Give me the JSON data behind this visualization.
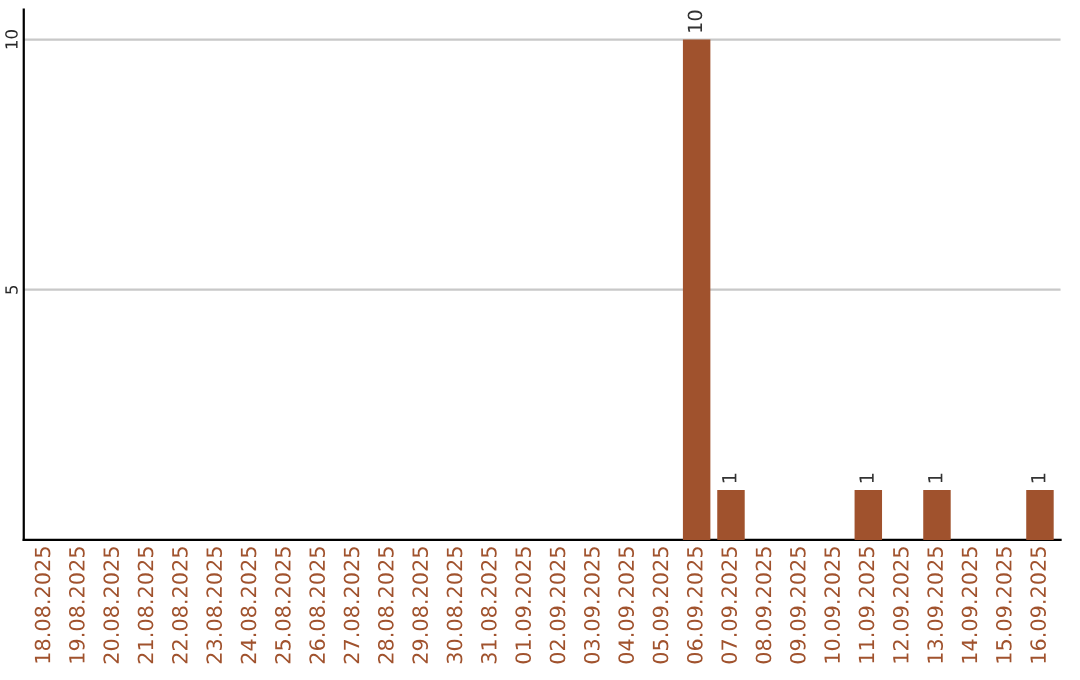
{
  "chart_data": {
    "type": "bar",
    "categories": [
      "18.08.2025",
      "19.08.2025",
      "20.08.2025",
      "21.08.2025",
      "22.08.2025",
      "23.08.2025",
      "24.08.2025",
      "25.08.2025",
      "26.08.2025",
      "27.08.2025",
      "28.08.2025",
      "29.08.2025",
      "30.08.2025",
      "31.08.2025",
      "01.09.2025",
      "02.09.2025",
      "03.09.2025",
      "04.09.2025",
      "05.09.2025",
      "06.09.2025",
      "07.09.2025",
      "08.09.2025",
      "09.09.2025",
      "10.09.2025",
      "11.09.2025",
      "12.09.2025",
      "13.09.2025",
      "14.09.2025",
      "15.09.2025",
      "16.09.2025"
    ],
    "values": [
      0,
      0,
      0,
      0,
      0,
      0,
      0,
      0,
      0,
      0,
      0,
      0,
      0,
      0,
      0,
      0,
      0,
      0,
      0,
      10,
      1,
      0,
      0,
      0,
      1,
      0,
      1,
      0,
      0,
      1
    ],
    "value_labels": [
      null,
      null,
      null,
      null,
      null,
      null,
      null,
      null,
      null,
      null,
      null,
      null,
      null,
      null,
      null,
      null,
      null,
      null,
      null,
      "10",
      "1",
      null,
      null,
      null,
      "1",
      null,
      "1",
      null,
      null,
      "1"
    ],
    "color": "#a0522d",
    "ylim": [
      0,
      10.6
    ],
    "yticks": [
      5,
      10
    ],
    "grid": "y"
  }
}
